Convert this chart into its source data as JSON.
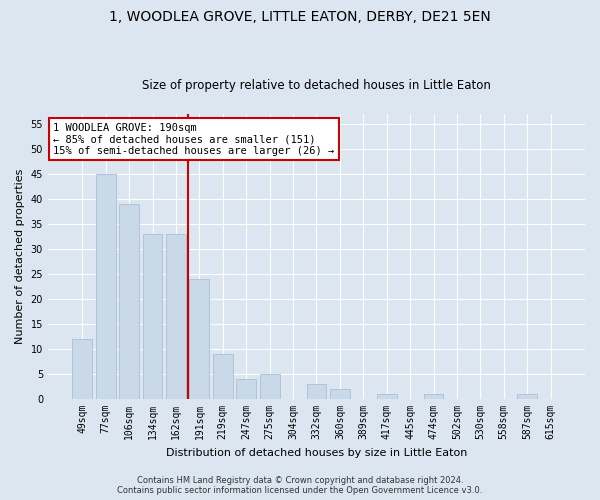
{
  "title": "1, WOODLEA GROVE, LITTLE EATON, DERBY, DE21 5EN",
  "subtitle": "Size of property relative to detached houses in Little Eaton",
  "xlabel": "Distribution of detached houses by size in Little Eaton",
  "ylabel": "Number of detached properties",
  "categories": [
    "49sqm",
    "77sqm",
    "106sqm",
    "134sqm",
    "162sqm",
    "191sqm",
    "219sqm",
    "247sqm",
    "275sqm",
    "304sqm",
    "332sqm",
    "360sqm",
    "389sqm",
    "417sqm",
    "445sqm",
    "474sqm",
    "502sqm",
    "530sqm",
    "558sqm",
    "587sqm",
    "615sqm"
  ],
  "values": [
    12,
    45,
    39,
    33,
    33,
    24,
    9,
    4,
    5,
    0,
    3,
    2,
    0,
    1,
    0,
    1,
    0,
    0,
    0,
    1,
    0
  ],
  "bar_color": "#c9d9e8",
  "bar_edge_color": "#b0c4d8",
  "ylim": [
    0,
    57
  ],
  "yticks": [
    0,
    5,
    10,
    15,
    20,
    25,
    30,
    35,
    40,
    45,
    50,
    55
  ],
  "vline_x_index": 5,
  "vline_color": "#cc0000",
  "annotation_line1": "1 WOODLEA GROVE: 190sqm",
  "annotation_line2": "← 85% of detached houses are smaller (151)",
  "annotation_line3": "15% of semi-detached houses are larger (26) →",
  "annotation_box_color": "#ffffff",
  "annotation_box_edge": "#cc0000",
  "footer_line1": "Contains HM Land Registry data © Crown copyright and database right 2024.",
  "footer_line2": "Contains public sector information licensed under the Open Government Licence v3.0.",
  "bg_color": "#dce6f0",
  "plot_bg_color": "#dce6f0",
  "title_fontsize": 10,
  "subtitle_fontsize": 8.5,
  "ylabel_fontsize": 8,
  "xlabel_fontsize": 8,
  "tick_fontsize": 7,
  "annotation_fontsize": 7.5,
  "footer_fontsize": 6
}
